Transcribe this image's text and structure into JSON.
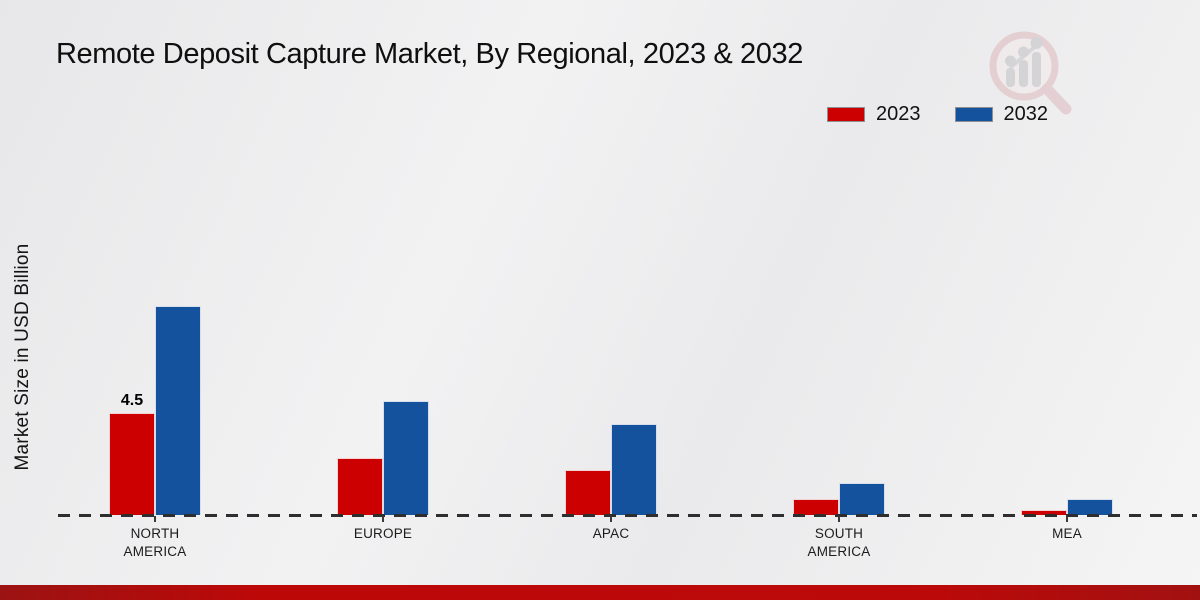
{
  "title": "Remote Deposit Capture Market, By Regional, 2023 & 2032",
  "y_axis_label": "Market Size in USD Billion",
  "legend": {
    "items": [
      {
        "label": "2023",
        "color": "#cc0000"
      },
      {
        "label": "2032",
        "color": "#15529e"
      }
    ]
  },
  "watermark": {
    "name": "market-research-magnifier-logo"
  },
  "footer": {
    "accent_color": "#b50d0d"
  },
  "chart_data": {
    "type": "bar",
    "title": "Remote Deposit Capture Market, By Regional, 2023 & 2032",
    "xlabel": "",
    "ylabel": "Market Size in USD Billion",
    "categories": [
      "NORTH AMERICA",
      "EUROPE",
      "APAC",
      "SOUTH AMERICA",
      "MEA"
    ],
    "category_label_lines": [
      [
        "NORTH",
        "AMERICA"
      ],
      [
        "EUROPE"
      ],
      [
        "APAC"
      ],
      [
        "SOUTH",
        "AMERICA"
      ],
      [
        "MEA"
      ]
    ],
    "series": [
      {
        "name": "2023",
        "color": "#cc0000",
        "values": [
          4.5,
          2.5,
          2.0,
          0.7,
          0.2
        ]
      },
      {
        "name": "2032",
        "color": "#15529e",
        "values": [
          9.2,
          5.0,
          4.0,
          1.4,
          0.7
        ]
      }
    ],
    "data_labels": [
      {
        "series_index": 0,
        "category_index": 0,
        "text": "4.5"
      }
    ],
    "ylim": [
      0,
      10
    ],
    "grid": false,
    "baseline_style": "dashed",
    "legend_position": "top-right"
  }
}
